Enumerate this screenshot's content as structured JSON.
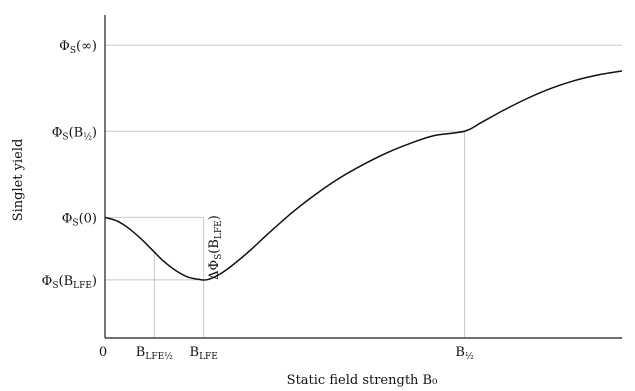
{
  "chart_data": {
    "type": "line",
    "title": "",
    "xlabel": "Static field strength B₀",
    "ylabel": "Singlet yield",
    "grid": false,
    "legend": "none",
    "colors": {
      "curve": "#111111",
      "guides": "#c8c8c8",
      "axes": "#1a1a1a"
    },
    "xlim": [
      0,
      11.0
    ],
    "ylim": [
      0.0,
      0.75
    ],
    "x_ticks": [
      {
        "label": "0",
        "x": 0
      },
      {
        "label": "B_LFE½",
        "x": 1.05
      },
      {
        "label": "B_LFE",
        "x": 2.1
      },
      {
        "label": "B_½",
        "x": 7.65
      }
    ],
    "y_ticks": [
      {
        "label": "Φ_S(∞)",
        "y": 0.68
      },
      {
        "label": "Φ_S(B_½)",
        "y": 0.48
      },
      {
        "label": "Φ_S(0)",
        "y": 0.28
      },
      {
        "label": "Φ_S(B_LFE)",
        "y": 0.135
      }
    ],
    "annotations": [
      {
        "text": "ΔΦ_S(B_LFE)",
        "x": 2.4,
        "y": 0.21,
        "rotation": -90
      }
    ],
    "series": [
      {
        "x": [
          0,
          0.25,
          0.5,
          0.75,
          1.0,
          1.25,
          1.5,
          1.75,
          2.0,
          2.2,
          2.5,
          3.0,
          3.5,
          4.0,
          4.5,
          5.0,
          5.5,
          6.0,
          6.5,
          7.0,
          7.65,
          8.0,
          8.5,
          9.0,
          9.5,
          10.0,
          10.5,
          11.0
        ],
        "y": [
          0.28,
          0.272,
          0.255,
          0.232,
          0.205,
          0.178,
          0.157,
          0.142,
          0.136,
          0.136,
          0.152,
          0.195,
          0.245,
          0.293,
          0.335,
          0.372,
          0.403,
          0.43,
          0.452,
          0.47,
          0.48,
          0.5,
          0.53,
          0.557,
          0.58,
          0.598,
          0.611,
          0.62
        ]
      }
    ]
  }
}
